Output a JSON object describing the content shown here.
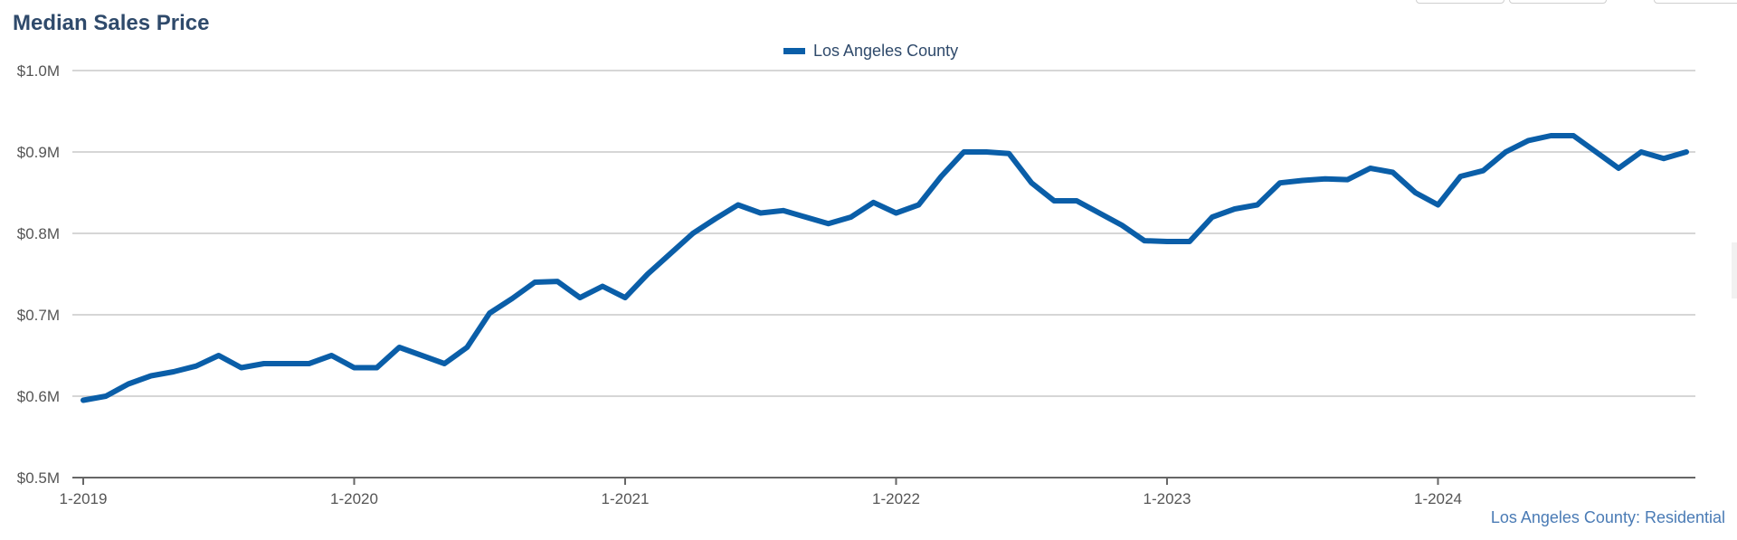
{
  "chart_data": {
    "type": "line",
    "title": "Median Sales Price",
    "series": [
      {
        "name": "Los Angeles County",
        "color": "#0a5ea8",
        "x": [
          "1-2019",
          "2-2019",
          "3-2019",
          "4-2019",
          "5-2019",
          "6-2019",
          "7-2019",
          "8-2019",
          "9-2019",
          "10-2019",
          "11-2019",
          "12-2019",
          "1-2020",
          "2-2020",
          "3-2020",
          "4-2020",
          "5-2020",
          "6-2020",
          "7-2020",
          "8-2020",
          "9-2020",
          "10-2020",
          "11-2020",
          "12-2020",
          "1-2021",
          "2-2021",
          "3-2021",
          "4-2021",
          "5-2021",
          "6-2021",
          "7-2021",
          "8-2021",
          "9-2021",
          "10-2021",
          "11-2021",
          "12-2021",
          "1-2022",
          "2-2022",
          "3-2022",
          "4-2022",
          "5-2022",
          "6-2022",
          "7-2022",
          "8-2022",
          "9-2022",
          "10-2022",
          "11-2022",
          "12-2022",
          "1-2023",
          "2-2023",
          "3-2023",
          "4-2023",
          "5-2023",
          "6-2023",
          "7-2023",
          "8-2023",
          "9-2023",
          "10-2023",
          "11-2023",
          "12-2023",
          "1-2024",
          "2-2024",
          "3-2024",
          "4-2024",
          "5-2024",
          "6-2024",
          "7-2024",
          "8-2024",
          "9-2024",
          "10-2024",
          "11-2024",
          "12-2024"
        ],
        "values": [
          0.595,
          0.6,
          0.615,
          0.625,
          0.63,
          0.637,
          0.65,
          0.635,
          0.64,
          0.64,
          0.64,
          0.65,
          0.635,
          0.635,
          0.66,
          0.65,
          0.64,
          0.66,
          0.702,
          0.72,
          0.74,
          0.741,
          0.721,
          0.735,
          0.721,
          0.75,
          0.775,
          0.8,
          0.818,
          0.835,
          0.825,
          0.828,
          0.82,
          0.812,
          0.82,
          0.838,
          0.825,
          0.835,
          0.87,
          0.9,
          0.9,
          0.898,
          0.862,
          0.84,
          0.84,
          0.825,
          0.81,
          0.791,
          0.79,
          0.79,
          0.82,
          0.83,
          0.835,
          0.862,
          0.865,
          0.867,
          0.866,
          0.88,
          0.875,
          0.85,
          0.835,
          0.87,
          0.877,
          0.9,
          0.914,
          0.92,
          0.92,
          0.9,
          0.88,
          0.9,
          0.892,
          0.9
        ]
      }
    ],
    "ylim": [
      0.5,
      1.0
    ],
    "y_ticks": [
      "$0.5M",
      "$0.6M",
      "$0.7M",
      "$0.8M",
      "$0.9M",
      "$1.0M"
    ],
    "x_ticks": [
      "1-2019",
      "1-2020",
      "1-2021",
      "1-2022",
      "1-2023",
      "1-2024"
    ],
    "legend_position": "top-center",
    "grid": "horizontal",
    "footer": "Los Angeles County: Residential"
  }
}
